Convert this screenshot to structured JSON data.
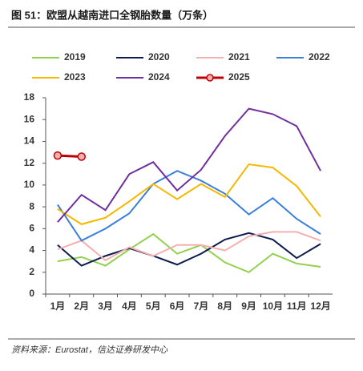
{
  "chart_data": {
    "type": "line",
    "title": "图 51：欧盟从越南进口全钢胎数量（万条）",
    "source": "资料来源：Eurostat，信达证券研发中心",
    "categories": [
      "1月",
      "2月",
      "3月",
      "4月",
      "5月",
      "6月",
      "7月",
      "8月",
      "9月",
      "10月",
      "11月",
      "12月"
    ],
    "series": [
      {
        "name": "2019",
        "color": "#92d050",
        "values": [
          3.0,
          3.4,
          2.6,
          4.1,
          5.5,
          3.7,
          4.5,
          2.9,
          2.0,
          3.7,
          2.8,
          2.5
        ]
      },
      {
        "name": "2020",
        "color": "#0d1c4f",
        "values": [
          4.5,
          2.6,
          3.5,
          4.2,
          3.5,
          2.7,
          3.7,
          5.0,
          5.6,
          5.0,
          3.3,
          4.6
        ]
      },
      {
        "name": "2021",
        "color": "#f4b0b0",
        "values": [
          4.1,
          4.9,
          3.1,
          4.3,
          3.5,
          4.5,
          4.5,
          4.0,
          5.3,
          5.7,
          5.7,
          4.9
        ]
      },
      {
        "name": "2022",
        "color": "#3a7fd9",
        "values": [
          8.2,
          4.9,
          6.0,
          7.4,
          10.1,
          11.3,
          10.4,
          9.2,
          7.3,
          8.8,
          6.9,
          5.5
        ]
      },
      {
        "name": "2023",
        "color": "#f5b800",
        "values": [
          7.8,
          6.4,
          7.0,
          8.5,
          10.1,
          8.7,
          10.1,
          8.9,
          11.9,
          11.6,
          9.9,
          7.1
        ]
      },
      {
        "name": "2024",
        "color": "#7030a0",
        "values": [
          6.6,
          9.1,
          7.7,
          11.0,
          12.1,
          9.5,
          11.4,
          14.5,
          17.0,
          16.5,
          15.4,
          11.3
        ]
      },
      {
        "name": "2025",
        "color": "#c00000",
        "markers": true,
        "values": [
          12.7,
          12.6,
          null,
          null,
          null,
          null,
          null,
          null,
          null,
          null,
          null,
          null
        ]
      }
    ],
    "ylim": [
      0,
      18
    ],
    "yticks": [
      0,
      2,
      4,
      6,
      8,
      10,
      12,
      14,
      16,
      18
    ],
    "grid": false
  }
}
